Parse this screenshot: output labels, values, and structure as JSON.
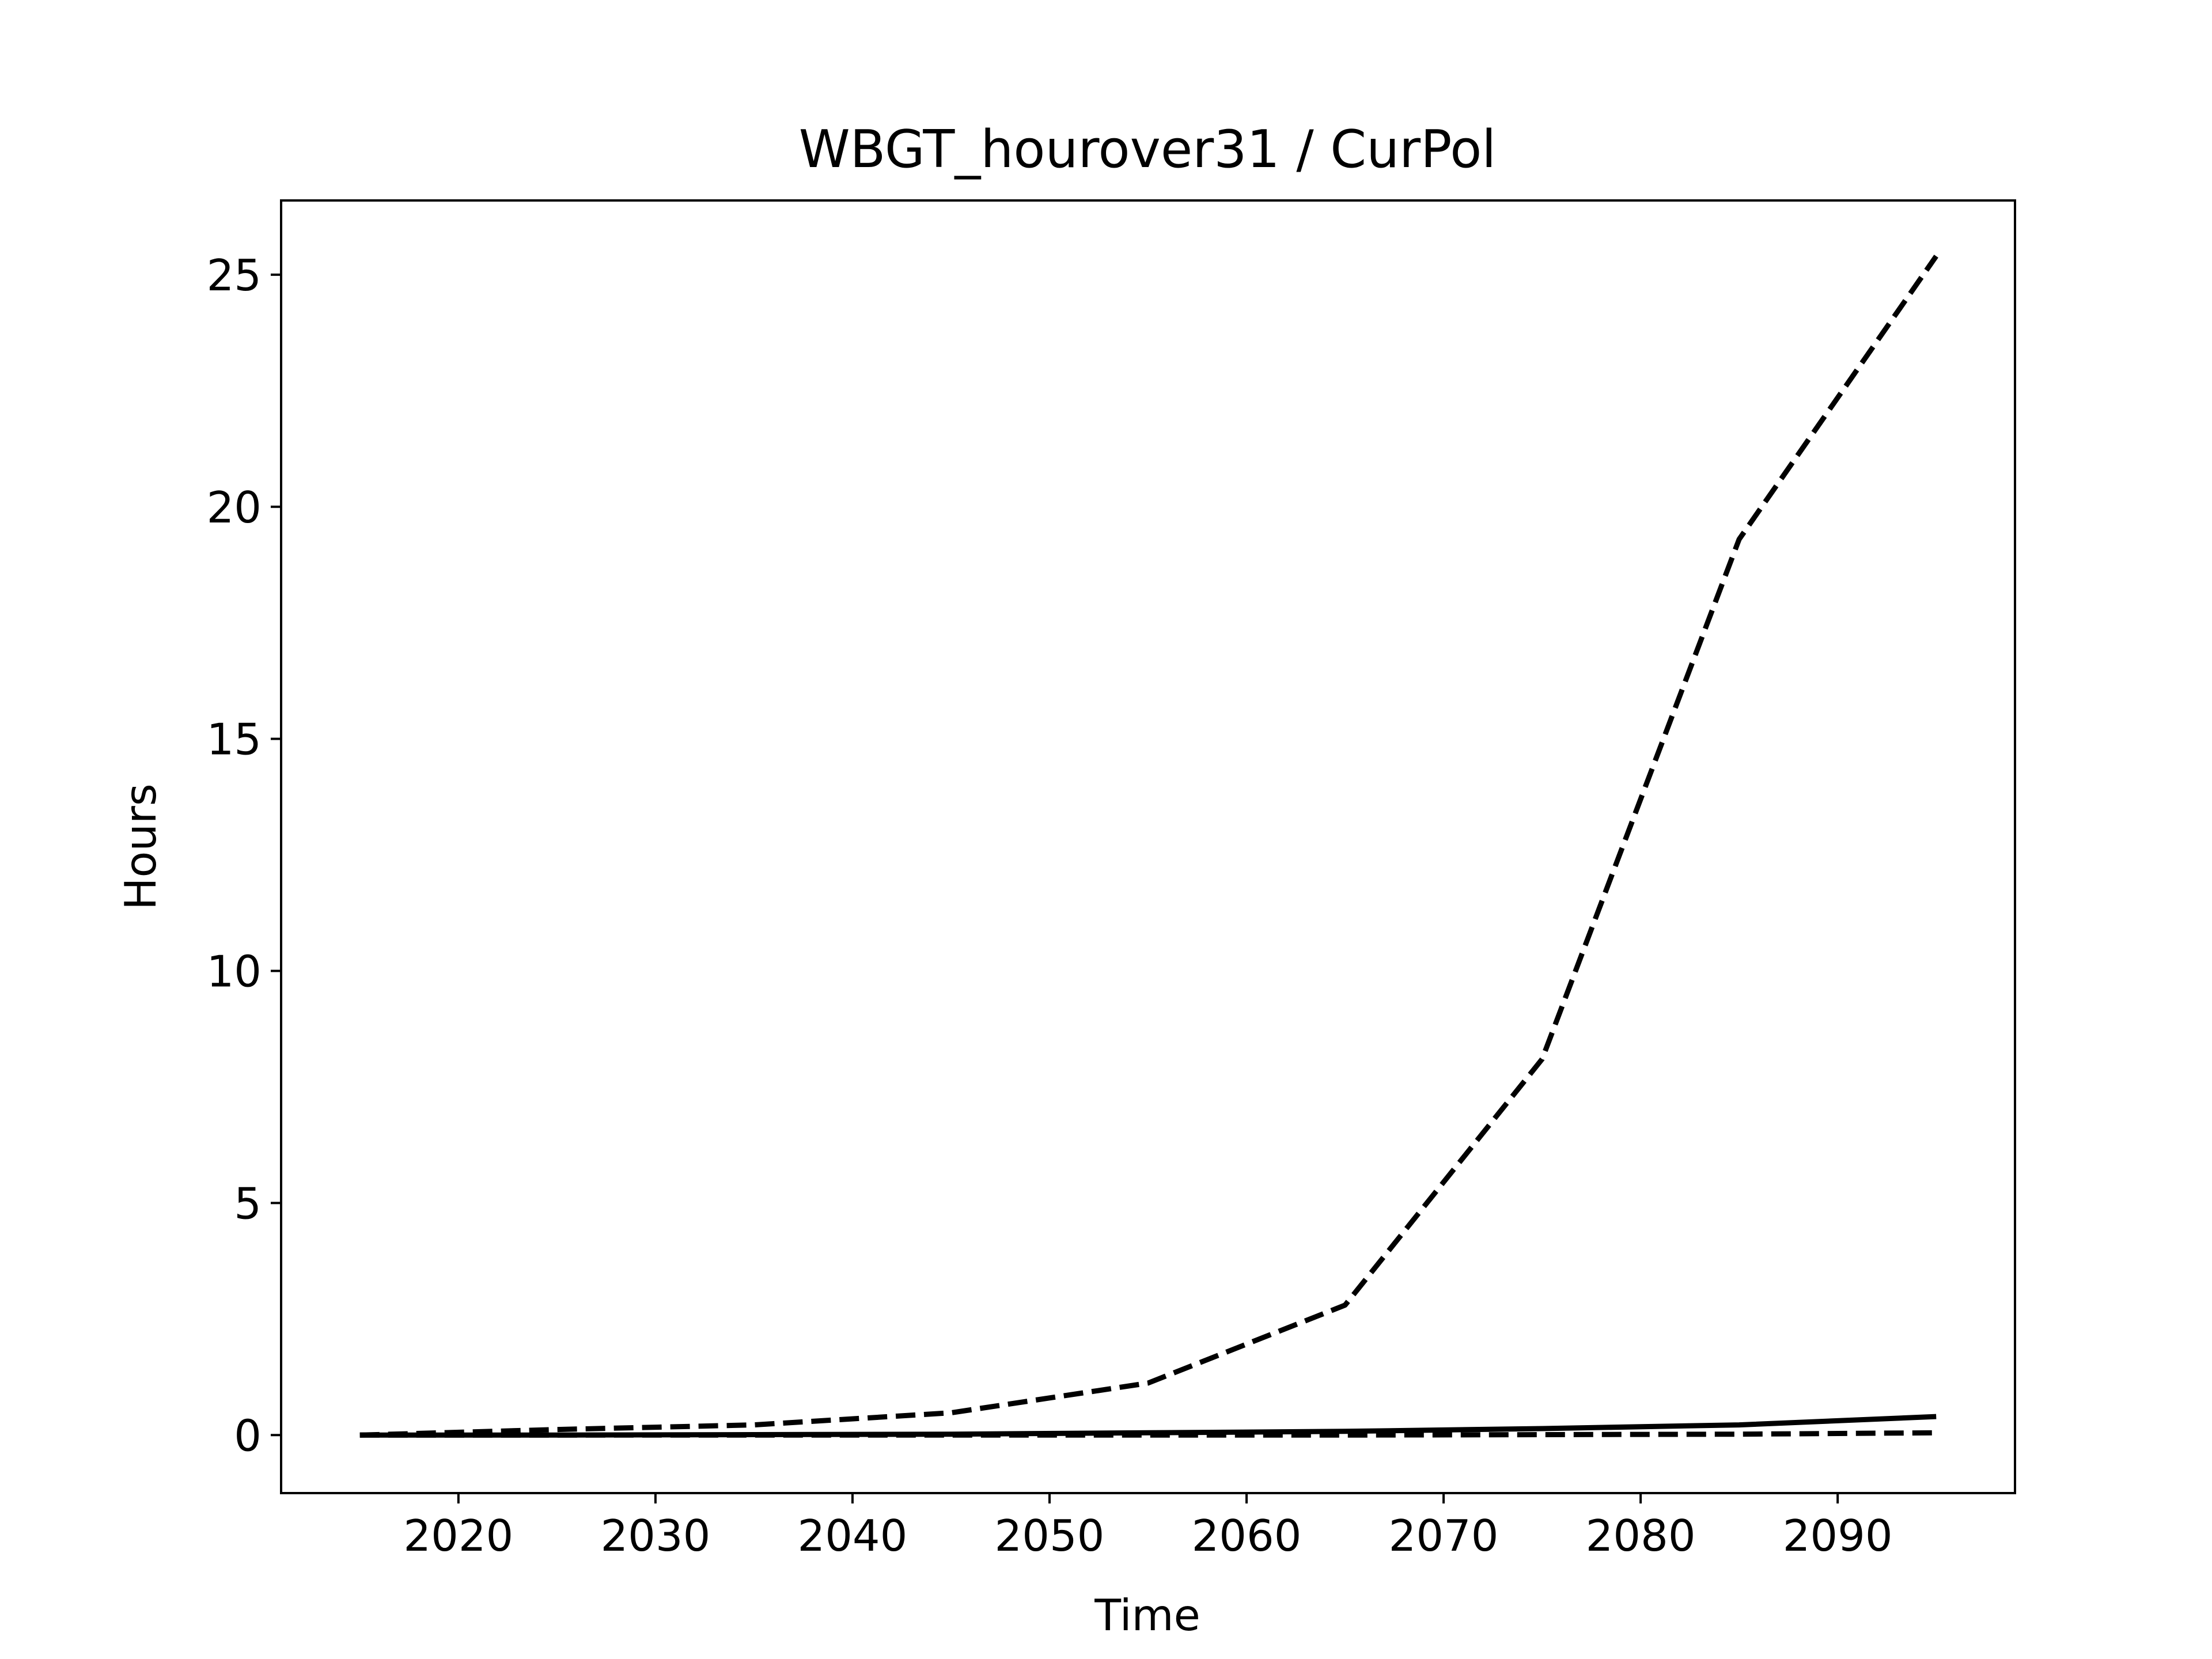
{
  "chart_data": {
    "type": "line",
    "title": "WBGT_hourover31 / CurPol",
    "xlabel": "Time",
    "ylabel": "Hours",
    "xlim": [
      2011,
      2099
    ],
    "ylim": [
      -1.25,
      26.6
    ],
    "xticks": [
      2020,
      2030,
      2040,
      2050,
      2060,
      2070,
      2080,
      2090
    ],
    "yticks": [
      0,
      5,
      10,
      15,
      20,
      25
    ],
    "grid": false,
    "legend": "none",
    "x": [
      2015,
      2025,
      2035,
      2045,
      2055,
      2065,
      2075,
      2085,
      2095
    ],
    "series": [
      {
        "style": "dashed",
        "color": "#000000",
        "values": [
          0.0,
          0.12,
          0.22,
          0.48,
          1.12,
          2.8,
          8.1,
          19.3,
          25.4
        ]
      },
      {
        "style": "solid",
        "color": "#000000",
        "values": [
          0.0,
          0.0,
          0.01,
          0.02,
          0.05,
          0.08,
          0.14,
          0.22,
          0.4
        ]
      },
      {
        "style": "dashed",
        "color": "#000000",
        "values": [
          0.0,
          0.0,
          0.0,
          0.0,
          0.0,
          0.0,
          0.01,
          0.02,
          0.05
        ]
      }
    ]
  }
}
